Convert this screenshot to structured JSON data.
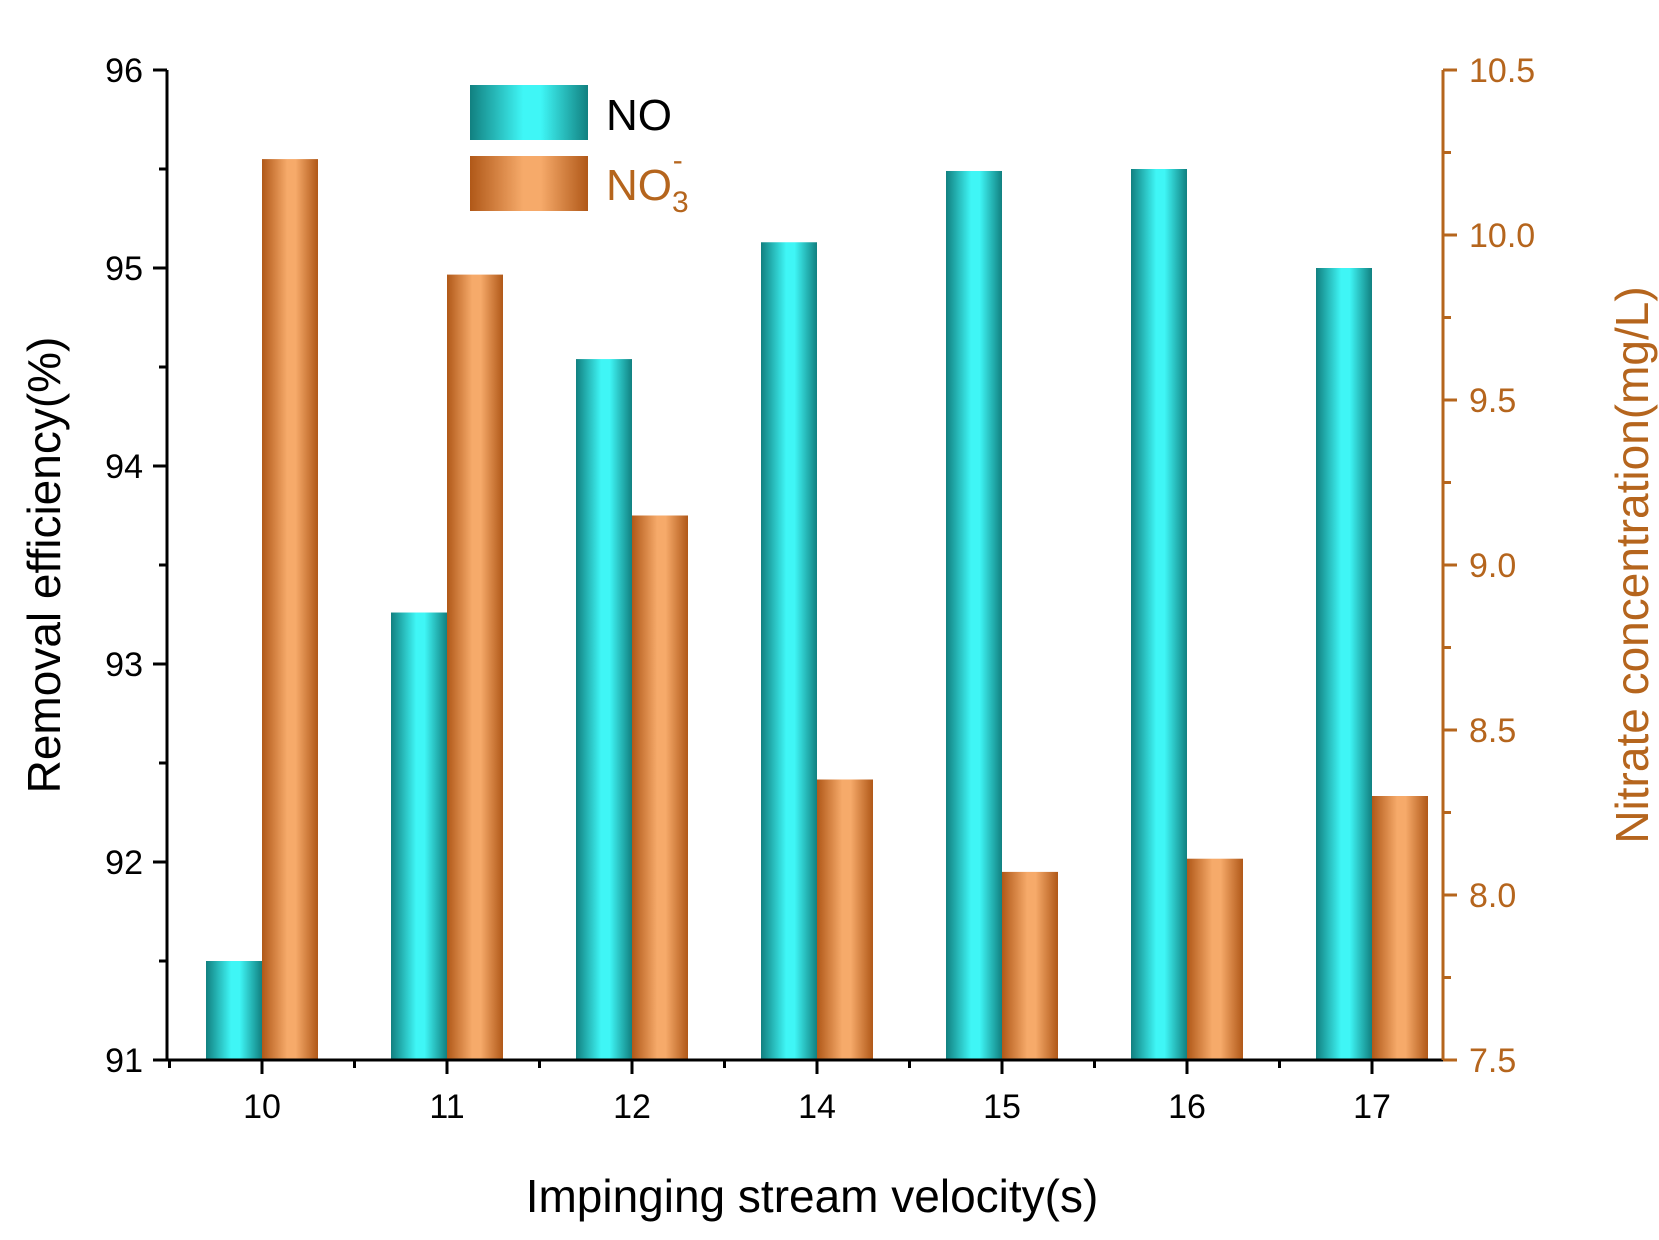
{
  "chart_data": {
    "type": "bar",
    "title": "",
    "xlabel": "Impinging stream velocity(s)",
    "ylabel": "Removal efficiency(%)",
    "y2label": "Nitrate concentration(mg/L)",
    "categories": [
      "10",
      "11",
      "12",
      "14",
      "15",
      "16",
      "17"
    ],
    "ylim": [
      91,
      96
    ],
    "y2lim": [
      7.5,
      10.5
    ],
    "yticks": [
      "91",
      "92",
      "93",
      "94",
      "95",
      "96"
    ],
    "y2ticks": [
      "7.5",
      "8.0",
      "8.5",
      "9.0",
      "9.5",
      "10.0",
      "10.5"
    ],
    "series": [
      {
        "name": "NO",
        "axis": "left",
        "color": "#22d8d8",
        "values": [
          91.5,
          93.26,
          94.54,
          95.13,
          95.49,
          95.5,
          95.0
        ]
      },
      {
        "name": "NO",
        "name_sub": "3",
        "name_sup": "-",
        "axis": "right",
        "color": "#e8914a",
        "values": [
          10.23,
          9.88,
          9.15,
          8.35,
          8.07,
          8.11,
          8.3
        ]
      }
    ],
    "legend": "top-left"
  },
  "colors": {
    "axis_left": "#000000",
    "axis_right": "#b5651d"
  }
}
